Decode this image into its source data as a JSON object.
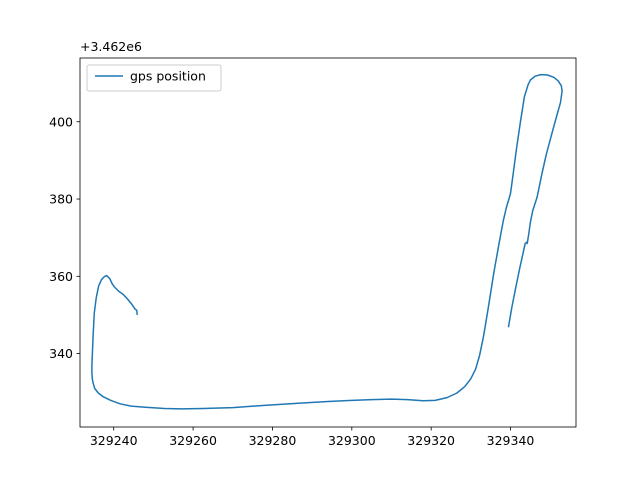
{
  "chart_data": {
    "type": "line",
    "title": "",
    "xlabel": "",
    "ylabel": "",
    "y_offset_label": "+3.462e6",
    "xlim": [
      329231.5,
      329356.5
    ],
    "ylim": [
      3462321.0,
      3462416.5
    ],
    "x_ticks": [
      329240,
      329260,
      329280,
      329300,
      329320,
      329340
    ],
    "y_ticks": [
      340,
      360,
      380,
      400
    ],
    "grid": false,
    "legend": {
      "position": "top-left",
      "entries": [
        "gps position"
      ]
    },
    "colors": {
      "series": "#1f77b4",
      "axes": "#000000"
    },
    "series": [
      {
        "name": "gps position",
        "x": [
          329245.9,
          329245.8,
          329245.4,
          329244.6,
          329243.5,
          329242.4,
          329241.3,
          329240.2,
          329239.6,
          329239.0,
          329238.5,
          329238.2,
          329237.6,
          329236.9,
          329236.2,
          329235.6,
          329235.1,
          329234.8,
          329234.6,
          329234.5,
          329234.5,
          329234.6,
          329234.8,
          329235.2,
          329236.1,
          329237.4,
          329239.2,
          329241.6,
          329244.4,
          329248.0,
          329252.8,
          329257.0,
          329262.5,
          329270.0,
          329278.0,
          329286.0,
          329294.0,
          329300.0,
          329305.0,
          329310.0,
          329314.0,
          329318.0,
          329321.0,
          329324.0,
          329326.5,
          329328.5,
          329330.0,
          329331.2,
          329332.2,
          329333.2,
          329334.5,
          329335.8,
          329337.2,
          329338.2,
          329339.0,
          329339.6,
          329340.0,
          329340.6,
          329341.5,
          329342.5,
          329343.5,
          329344.4,
          329345.0,
          329346.2,
          329347.6,
          329349.3,
          329350.9,
          329352.0,
          329352.8,
          329353.0,
          329352.6,
          329351.5,
          329350.3,
          329349.0,
          329347.8,
          329346.7,
          329345.6,
          329345.0,
          329344.6,
          329344.2,
          329344.3,
          329343.7,
          329343.2,
          329342.3,
          329341.3,
          329340.3,
          329339.5
        ],
        "y": [
          3462350.2,
          3462351.2,
          3462351.5,
          3462352.7,
          3462354.1,
          3462355.3,
          3462356.1,
          3462357.2,
          3462358.1,
          3462359.4,
          3462359.9,
          3462360.2,
          3462359.9,
          3462359.1,
          3462357.5,
          3462354.5,
          3462350.5,
          3462344.5,
          3462339.5,
          3462337.0,
          3462335.0,
          3462333.5,
          3462332.4,
          3462331.0,
          3462329.8,
          3462328.8,
          3462327.9,
          3462327.0,
          3462326.4,
          3462326.1,
          3462325.8,
          3462325.7,
          3462325.8,
          3462326.0,
          3462326.6,
          3462327.1,
          3462327.6,
          3462327.9,
          3462328.1,
          3462328.2,
          3462328.1,
          3462327.8,
          3462327.9,
          3462328.6,
          3462329.8,
          3462331.5,
          3462333.5,
          3462336.0,
          3462339.5,
          3462344.5,
          3462352.5,
          3462361.0,
          3462369.0,
          3462374.5,
          3462378.0,
          3462380.0,
          3462381.5,
          3462386.0,
          3462393.0,
          3462400.0,
          3462406.5,
          3462409.5,
          3462410.8,
          3462411.8,
          3462412.2,
          3462412.1,
          3462411.5,
          3462410.6,
          3462409.3,
          3462408.0,
          3462405.0,
          3462401.0,
          3462396.5,
          3462391.5,
          3462386.0,
          3462380.5,
          3462377.0,
          3462374.0,
          3462371.0,
          3462368.5,
          3462369.0,
          3462368.5,
          3462366.2,
          3462362.0,
          3462357.0,
          3462351.8,
          3462347.0
        ]
      }
    ]
  }
}
